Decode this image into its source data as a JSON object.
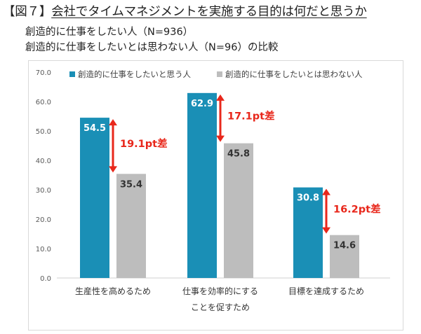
{
  "figure": {
    "tag": "【図７】",
    "title": "会社でタイムマネジメントを実施する目的は何だと思うか",
    "subtitle_1": "創造的に仕事をしたい人（N=936）",
    "subtitle_2": "創造的に仕事をしたいとは思わない人（N=96）の比較"
  },
  "chart_data": {
    "type": "bar",
    "categories": [
      "生産性を高めるため",
      "仕事を効率的にする\nことを促すため",
      "目標を達成するため"
    ],
    "series": [
      {
        "name": "創造的に仕事をしたいと思う人",
        "values": [
          54.5,
          62.9,
          30.8
        ],
        "color": "#1a8fb6"
      },
      {
        "name": "創造的に仕事をしたいとは思わない人",
        "values": [
          35.4,
          45.8,
          14.6
        ],
        "color": "#bdbdbd"
      }
    ],
    "differences": [
      "19.1pt差",
      "17.1pt差",
      "16.2pt差"
    ],
    "difference_color": "#e8271b",
    "ylim": [
      0,
      70
    ],
    "yticks": [
      "0.0",
      "10.0",
      "20.0",
      "30.0",
      "40.0",
      "50.0",
      "60.0",
      "70.0"
    ],
    "legend_position": "top",
    "grid": false
  }
}
